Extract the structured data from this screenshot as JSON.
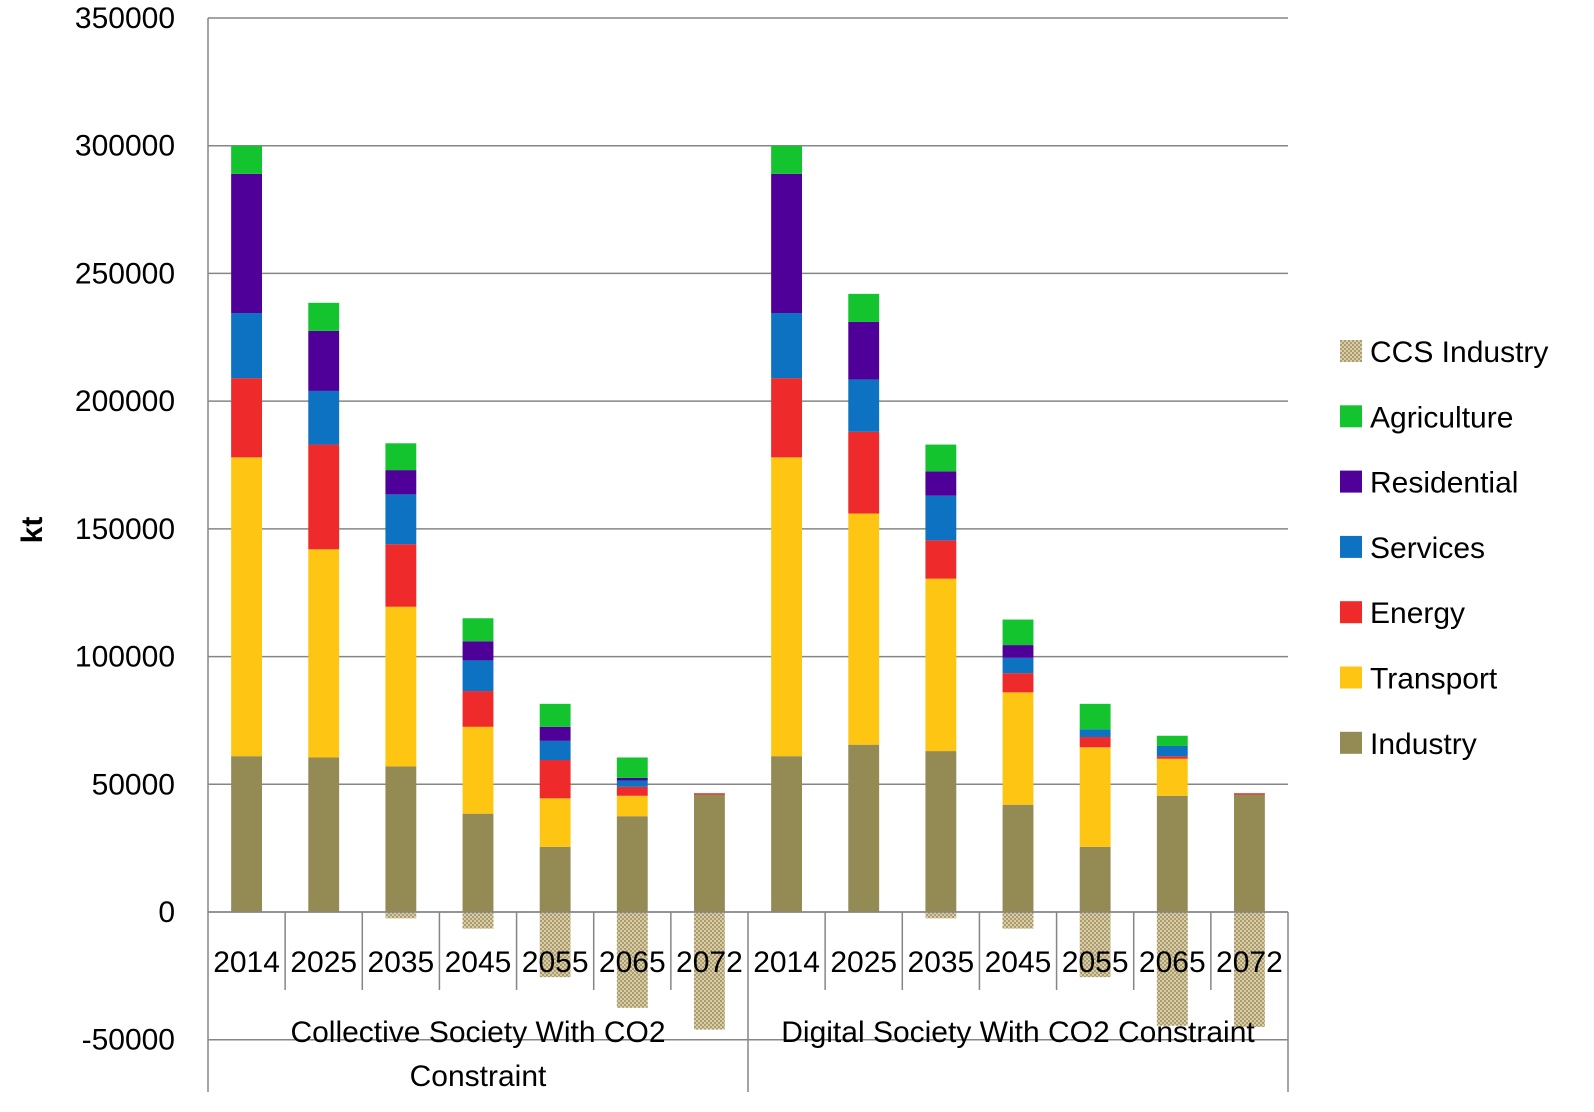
{
  "chart_data": {
    "type": "bar",
    "stacked": true,
    "ylabel": "kt",
    "xlabel": "",
    "ylim": [
      -50000,
      350000
    ],
    "yticks": [
      "350000",
      "300000",
      "250000",
      "200000",
      "150000",
      "100000",
      "50000",
      "0",
      "-50000"
    ],
    "grid": true,
    "legend_position": "right",
    "groups": [
      {
        "label_lines": [
          "Collective Society With CO2",
          "Constraint"
        ],
        "categories": [
          "2014",
          "2025",
          "2035",
          "2045",
          "2055",
          "2065",
          "2072"
        ]
      },
      {
        "label_lines": [
          "Digital Society With CO2 Constraint"
        ],
        "categories": [
          "2014",
          "2025",
          "2035",
          "2045",
          "2055",
          "2065",
          "2072"
        ]
      }
    ],
    "series": [
      {
        "name": "Industry",
        "color": "#948A54",
        "values": [
          61000,
          60500,
          57000,
          38500,
          25500,
          37500,
          46000,
          61000,
          65500,
          63000,
          42000,
          25500,
          45500,
          46000
        ]
      },
      {
        "name": "Transport",
        "color": "#FFC513",
        "values": [
          117000,
          81500,
          62500,
          34000,
          19000,
          8000,
          0,
          117000,
          90500,
          67500,
          44000,
          39000,
          14500,
          0
        ]
      },
      {
        "name": "Energy",
        "color": "#EE2A2A",
        "values": [
          31000,
          41000,
          24500,
          14000,
          15000,
          3500,
          500,
          31000,
          32000,
          15000,
          7500,
          4000,
          1000,
          500
        ]
      },
      {
        "name": "Services",
        "color": "#0C72C1",
        "values": [
          25500,
          21000,
          19500,
          12000,
          7500,
          2500,
          0,
          25500,
          20500,
          17500,
          6000,
          3000,
          4000,
          0
        ]
      },
      {
        "name": "Residential",
        "color": "#4F0099",
        "values": [
          54500,
          23500,
          9500,
          7500,
          5500,
          1000,
          0,
          54500,
          22500,
          9500,
          5000,
          0,
          0,
          0
        ]
      },
      {
        "name": "Agriculture",
        "color": "#14C42F",
        "values": [
          11000,
          11000,
          10500,
          9000,
          9000,
          8000,
          0,
          11000,
          11000,
          10500,
          10000,
          10000,
          4000,
          0
        ]
      },
      {
        "name": "CCS Industry",
        "color": "#C9B98A",
        "pattern": "dotted",
        "values": [
          0,
          0,
          -2500,
          -6500,
          -25500,
          -37500,
          -46000,
          0,
          0,
          -2500,
          -6500,
          -25500,
          -44500,
          -45000
        ]
      }
    ]
  }
}
